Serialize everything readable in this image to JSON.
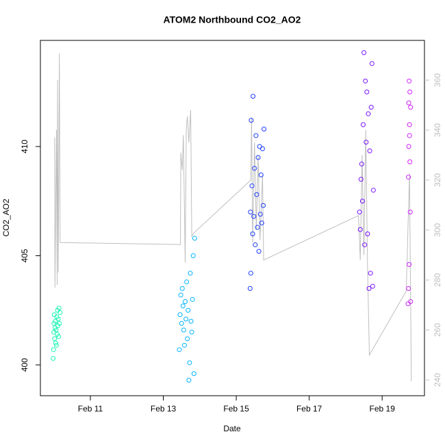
{
  "chart_data": {
    "type": "scatter",
    "title": "ATOM2 Northbound CO2_AO2",
    "x_label": "Date",
    "y_label": "CO2_AO2",
    "xlim": [
      9.63,
      20.16
    ],
    "xticks": [
      {
        "value": 11,
        "label": "Feb 11"
      },
      {
        "value": 13,
        "label": "Feb 13"
      },
      {
        "value": 15,
        "label": "Feb 15"
      },
      {
        "value": 17,
        "label": "Feb 17"
      },
      {
        "value": 19,
        "label": "Feb 19"
      }
    ],
    "ylim": [
      398.59,
      414.86
    ],
    "yticks": [
      400,
      405,
      410
    ],
    "y2lim": [
      233.7,
      375.9
    ],
    "y2ticks": [
      240,
      260,
      280,
      300,
      320,
      340,
      360
    ],
    "series": [
      {
        "type": "line",
        "axis": "y2",
        "color": "#bebebe",
        "x": [
          10.02,
          10.03,
          10.07,
          10.09,
          10.1,
          10.12,
          10.15,
          10.17,
          13.47,
          13.48,
          13.52,
          13.55,
          13.6,
          13.63,
          13.66,
          13.7,
          13.75,
          13.78,
          13.85,
          15.4,
          15.42,
          15.45,
          15.5,
          15.55,
          15.6,
          15.65,
          15.72,
          15.75,
          18.35,
          18.4,
          18.45,
          18.5,
          18.55,
          18.6,
          18.65,
          19.66,
          19.75,
          19.8
        ],
        "values": [
          337,
          277,
          340,
          278,
          360,
          283,
          370.7,
          295,
          294.2,
          331,
          324,
          338,
          287,
          341,
          345.5,
          335,
          348,
          297.5,
          299,
          320,
          345,
          295,
          335,
          300,
          330,
          296,
          322,
          288,
          305.8,
          288,
          330,
          290,
          340,
          285,
          250,
          275.6,
          322.7,
          239.5
        ]
      },
      {
        "color": "#19f5b4",
        "x": [
          9.98,
          9.99,
          10.0,
          10.0,
          10.01,
          10.02,
          10.03,
          10.04,
          10.05,
          10.06,
          10.07,
          10.08,
          10.09,
          10.1,
          10.11,
          10.12,
          10.13,
          10.14,
          10.15,
          10.17
        ],
        "values": [
          400.3,
          400.7,
          401.9,
          401.5,
          402.3,
          401.2,
          401.7,
          402.0,
          401.0,
          401.6,
          400.9,
          402.2,
          401.4,
          402.5,
          401.8,
          402.1,
          401.3,
          402.6,
          401.9,
          402.4
        ]
      },
      {
        "color": "#00b4ff",
        "x": [
          13.44,
          13.46,
          13.48,
          13.5,
          13.52,
          13.54,
          13.56,
          13.58,
          13.6,
          13.62,
          13.64,
          13.66,
          13.68,
          13.7,
          13.72,
          13.74,
          13.76,
          13.78,
          13.8,
          13.82,
          13.84,
          13.86
        ],
        "values": [
          400.7,
          402.3,
          403.2,
          401.9,
          403.5,
          402.7,
          401.6,
          400.9,
          402.9,
          402.1,
          403.8,
          401.2,
          402.5,
          399.3,
          400.1,
          404.2,
          402.0,
          401.5,
          403.0,
          405.0,
          399.6,
          405.8
        ]
      },
      {
        "color": "#1a3cff",
        "x": [
          15.38,
          15.39,
          15.4,
          15.41,
          15.43,
          15.45,
          15.46,
          15.48,
          15.5,
          15.52,
          15.54,
          15.56,
          15.58,
          15.6,
          15.62,
          15.64,
          15.66,
          15.68,
          15.7,
          15.72,
          15.74,
          15.76
        ],
        "values": [
          403.5,
          407.0,
          404.2,
          411.2,
          408.2,
          406.0,
          412.3,
          406.8,
          409.0,
          405.5,
          410.5,
          407.8,
          406.3,
          409.5,
          405.2,
          410.0,
          406.9,
          408.7,
          406.5,
          409.9,
          407.3,
          410.8
        ]
      },
      {
        "color": "#7a10ff",
        "x": [
          18.38,
          18.4,
          18.42,
          18.44,
          18.46,
          18.48,
          18.5,
          18.52,
          18.54,
          18.56,
          18.58,
          18.6,
          18.62,
          18.64,
          18.66,
          18.68,
          18.7,
          18.72,
          18.74,
          18.76
        ],
        "values": [
          407.0,
          406.2,
          408.5,
          409.2,
          407.5,
          411.0,
          414.3,
          405.5,
          413.0,
          410.2,
          412.5,
          406.0,
          411.5,
          403.5,
          409.8,
          404.2,
          411.8,
          413.8,
          403.6,
          408.0
        ]
      },
      {
        "color": "#d020ff",
        "x": [
          19.71,
          19.72,
          19.72,
          19.73,
          19.73,
          19.74,
          19.74,
          19.75,
          19.75,
          19.76,
          19.76,
          19.77,
          19.78,
          19.78
        ],
        "values": [
          402.8,
          403.5,
          408.6,
          410.0,
          412.0,
          413.0,
          404.6,
          411.0,
          410.5,
          412.5,
          409.3,
          407.0,
          411.8,
          402.9
        ]
      }
    ]
  }
}
